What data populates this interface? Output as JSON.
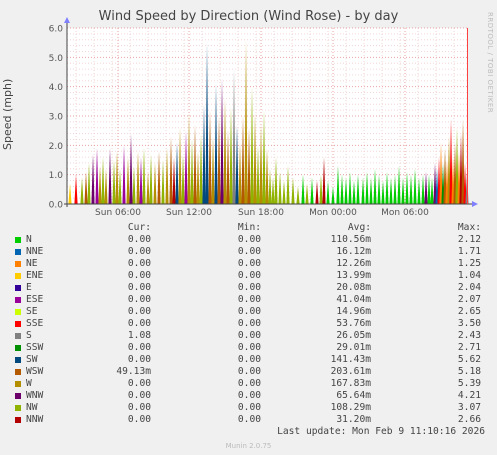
{
  "chart_data": {
    "type": "area",
    "title": "Wind Speed by Direction (Wind Rose) - by day",
    "ylabel": "Speed (mph)",
    "ylim": [
      0,
      6.0
    ],
    "yticks": [
      "0.0",
      "1.0",
      "2.0",
      "3.0",
      "4.0",
      "5.0",
      "6.0"
    ],
    "x_tick_labels": [
      "Sun 06:00",
      "Sun 12:00",
      "Sun 18:00",
      "Mon 00:00",
      "Mon 06:00"
    ],
    "grid": true,
    "series": [
      {
        "name": "N",
        "color": "#00cc00",
        "cur": "0.00",
        "min": "0.00",
        "avg": "110.56m",
        "max": "2.12"
      },
      {
        "name": "NNE",
        "color": "#0066b3",
        "cur": "0.00",
        "min": "0.00",
        "avg": "16.12m",
        "max": "1.71"
      },
      {
        "name": "NE",
        "color": "#ff8000",
        "cur": "0.00",
        "min": "0.00",
        "avg": "12.26m",
        "max": "1.25"
      },
      {
        "name": "ENE",
        "color": "#ffcc00",
        "cur": "0.00",
        "min": "0.00",
        "avg": "13.99m",
        "max": "1.04"
      },
      {
        "name": "E",
        "color": "#330099",
        "cur": "0.00",
        "min": "0.00",
        "avg": "20.08m",
        "max": "2.04"
      },
      {
        "name": "ESE",
        "color": "#990099",
        "cur": "0.00",
        "min": "0.00",
        "avg": "41.04m",
        "max": "2.07"
      },
      {
        "name": "SE",
        "color": "#ccff00",
        "cur": "0.00",
        "min": "0.00",
        "avg": "14.96m",
        "max": "2.65"
      },
      {
        "name": "SSE",
        "color": "#ff0000",
        "cur": "0.00",
        "min": "0.00",
        "avg": "53.76m",
        "max": "3.50"
      },
      {
        "name": "S",
        "color": "#808080",
        "cur": "1.08",
        "min": "0.00",
        "avg": "26.05m",
        "max": "2.43"
      },
      {
        "name": "SSW",
        "color": "#008f00",
        "cur": "0.00",
        "min": "0.00",
        "avg": "29.01m",
        "max": "2.71"
      },
      {
        "name": "SW",
        "color": "#00487d",
        "cur": "0.00",
        "min": "0.00",
        "avg": "141.43m",
        "max": "5.62"
      },
      {
        "name": "WSW",
        "color": "#b35a00",
        "cur": "49.13m",
        "min": "0.00",
        "avg": "203.61m",
        "max": "5.18"
      },
      {
        "name": "W",
        "color": "#b38f00",
        "cur": "0.00",
        "min": "0.00",
        "avg": "167.83m",
        "max": "5.39"
      },
      {
        "name": "WNW",
        "color": "#6b006b",
        "cur": "0.00",
        "min": "0.00",
        "avg": "65.64m",
        "max": "4.21"
      },
      {
        "name": "NW",
        "color": "#8fb300",
        "cur": "0.00",
        "min": "0.00",
        "avg": "108.29m",
        "max": "3.07"
      },
      {
        "name": "NNW",
        "color": "#b30000",
        "cur": "0.00",
        "min": "0.00",
        "avg": "31.20m",
        "max": "2.66"
      }
    ]
  },
  "legend_headers": {
    "cur": "Cur:",
    "min": "Min:",
    "avg": "Avg:",
    "max": "Max:"
  },
  "footer": "Last update: Mon Feb  9 11:10:16 2026",
  "side_label": "RRDTOOL / TOBI OETIKER",
  "munin_version": "Munin 2.0.75"
}
